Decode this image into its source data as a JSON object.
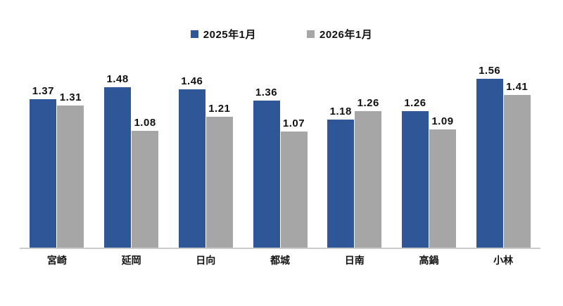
{
  "chart_data": {
    "type": "bar",
    "title": "",
    "xlabel": "",
    "ylabel": "",
    "categories": [
      "宮崎",
      "延岡",
      "日向",
      "都城",
      "日南",
      "高鍋",
      "小林"
    ],
    "series": [
      {
        "name": "2025年1月",
        "color": "#2f5696",
        "values": [
          1.37,
          1.48,
          1.46,
          1.36,
          1.18,
          1.26,
          1.56
        ]
      },
      {
        "name": "2026年1月",
        "color": "#a6a6a6",
        "values": [
          1.31,
          1.08,
          1.21,
          1.07,
          1.26,
          1.09,
          1.41
        ]
      }
    ],
    "ylim": [
      0,
      1.6
    ],
    "grid": false,
    "axis_line_color": "#cccccc",
    "legend_position": "top-center",
    "data_labels": true,
    "data_label_decimals": 2
  }
}
